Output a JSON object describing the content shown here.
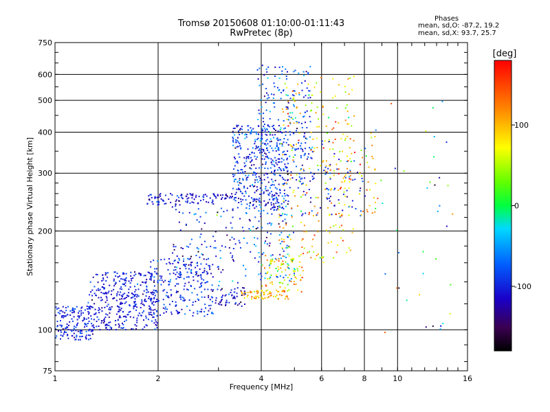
{
  "header": {
    "title_line1": "Tromsø 20150608 01:10:00-01:11:43",
    "title_line2": "RwPretec (8p)"
  },
  "phase_box": {
    "title": "Phases",
    "line_o": "mean, sd,O: -87.2, 19.2",
    "line_x": "mean, sd,X:  93.7, 25.7"
  },
  "colorbar": {
    "unit": "[deg]",
    "tick_labels": [
      "100",
      "0",
      "-100"
    ],
    "tick_values": [
      100,
      0,
      -100
    ],
    "range": [
      -180,
      180
    ]
  },
  "chart_data": {
    "type": "scatter",
    "xlabel": "Frequency [MHz]",
    "ylabel": "Stationary phase Virtual Height [km]",
    "xscale": "log",
    "yscale": "log",
    "xlim": [
      1,
      16
    ],
    "ylim": [
      75,
      750
    ],
    "x_ticks": [
      1,
      2,
      4,
      6,
      8,
      10,
      16
    ],
    "x_tick_labels": [
      "1",
      "2",
      "4",
      "6",
      "8",
      "10",
      "16"
    ],
    "y_ticks": [
      75,
      100,
      200,
      300,
      400,
      500,
      600,
      750
    ],
    "y_tick_labels": [
      "75",
      "100",
      "200",
      "300",
      "400",
      "500",
      "600",
      "750"
    ],
    "grid": true,
    "color_encoding": "phase [deg]",
    "clusters": [
      {
        "fmin": 1.0,
        "fmax": 1.3,
        "hmin": 93,
        "hmax": 118,
        "phase": -100,
        "phase_sd": 15,
        "count": 160
      },
      {
        "fmin": 1.25,
        "fmax": 2.0,
        "hmin": 100,
        "hmax": 150,
        "phase": -105,
        "phase_sd": 15,
        "count": 380
      },
      {
        "fmin": 1.9,
        "fmax": 2.9,
        "hmin": 110,
        "hmax": 165,
        "phase": -95,
        "phase_sd": 20,
        "count": 240
      },
      {
        "fmin": 2.8,
        "fmax": 3.6,
        "hmin": 118,
        "hmax": 135,
        "phase": -115,
        "phase_sd": 20,
        "count": 60
      },
      {
        "fmin": 3.5,
        "fmax": 4.8,
        "hmin": 124,
        "hmax": 132,
        "phase": 100,
        "phase_sd": 25,
        "count": 70
      },
      {
        "fmin": 4.0,
        "fmax": 5.3,
        "hmin": 130,
        "hmax": 170,
        "phase": 80,
        "phase_sd": 40,
        "count": 90
      },
      {
        "fmin": 1.85,
        "fmax": 2.9,
        "hmin": 240,
        "hmax": 260,
        "phase": -105,
        "phase_sd": 15,
        "count": 80
      },
      {
        "fmin": 2.9,
        "fmax": 3.3,
        "hmin": 250,
        "hmax": 260,
        "phase": -115,
        "phase_sd": 15,
        "count": 25
      },
      {
        "fmin": 2.2,
        "fmax": 3.5,
        "hmin": 135,
        "hmax": 260,
        "phase": -95,
        "phase_sd": 30,
        "count": 120
      },
      {
        "fmin": 3.3,
        "fmax": 4.8,
        "hmin": 230,
        "hmax": 420,
        "phase": -95,
        "phase_sd": 25,
        "count": 420
      },
      {
        "fmin": 3.9,
        "fmax": 5.6,
        "hmin": 330,
        "hmax": 640,
        "phase": -85,
        "phase_sd": 30,
        "count": 180
      },
      {
        "fmin": 3.5,
        "fmax": 5.0,
        "hmin": 140,
        "hmax": 260,
        "phase": -90,
        "phase_sd": 40,
        "count": 120
      },
      {
        "fmin": 4.5,
        "fmax": 7.5,
        "hmin": 160,
        "hmax": 600,
        "phase": 90,
        "phase_sd": 40,
        "count": 230
      },
      {
        "fmin": 4.4,
        "fmax": 8.2,
        "hmin": 220,
        "hmax": 380,
        "phase": -95,
        "phase_sd": 20,
        "count": 120
      },
      {
        "fmin": 6.0,
        "fmax": 8.8,
        "hmin": 220,
        "hmax": 420,
        "phase": 100,
        "phase_sd": 40,
        "count": 70
      },
      {
        "fmin": 8.5,
        "fmax": 14.5,
        "hmin": 90,
        "hmax": 600,
        "phase": -40,
        "phase_sd": 90,
        "count": 40
      }
    ]
  }
}
